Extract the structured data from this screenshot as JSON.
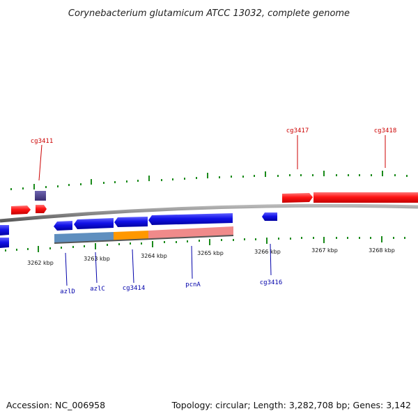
{
  "title": "Corynebacterium glutamicum ATCC 13032, complete genome",
  "footer": {
    "accession": "Accession: NC_006958",
    "summary": "Topology: circular; Length: 3,282,708 bp; Genes: 3,142"
  },
  "colors": {
    "backbone": "#8a8a8a",
    "forward_gene": "#ff1111",
    "reverse_gene": "#1010e0",
    "other_feature": "#4a3f8a",
    "tick": "#1a8a1a",
    "forward_label": "#cc0000",
    "reverse_label": "#0000aa",
    "operon_band_1": "#5f8fbf",
    "operon_band_2": "#ff9800",
    "operon_band_3": "#f08a8a"
  },
  "ticks": [
    {
      "label": "3262 kbp"
    },
    {
      "label": "3263 kbp"
    },
    {
      "label": "3264 kbp"
    },
    {
      "label": "3265 kbp"
    },
    {
      "label": "3266 kbp"
    },
    {
      "label": "3267 kbp"
    },
    {
      "label": "3268 kbp"
    }
  ],
  "gene_labels": {
    "cg3411": "cg3411",
    "cg3417": "cg3417",
    "cg3418": "cg3418",
    "azlD": "azlD",
    "azlC": "azlC",
    "cg3414": "cg3414",
    "pcnA": "pcnA",
    "cg3416": "cg3416"
  }
}
